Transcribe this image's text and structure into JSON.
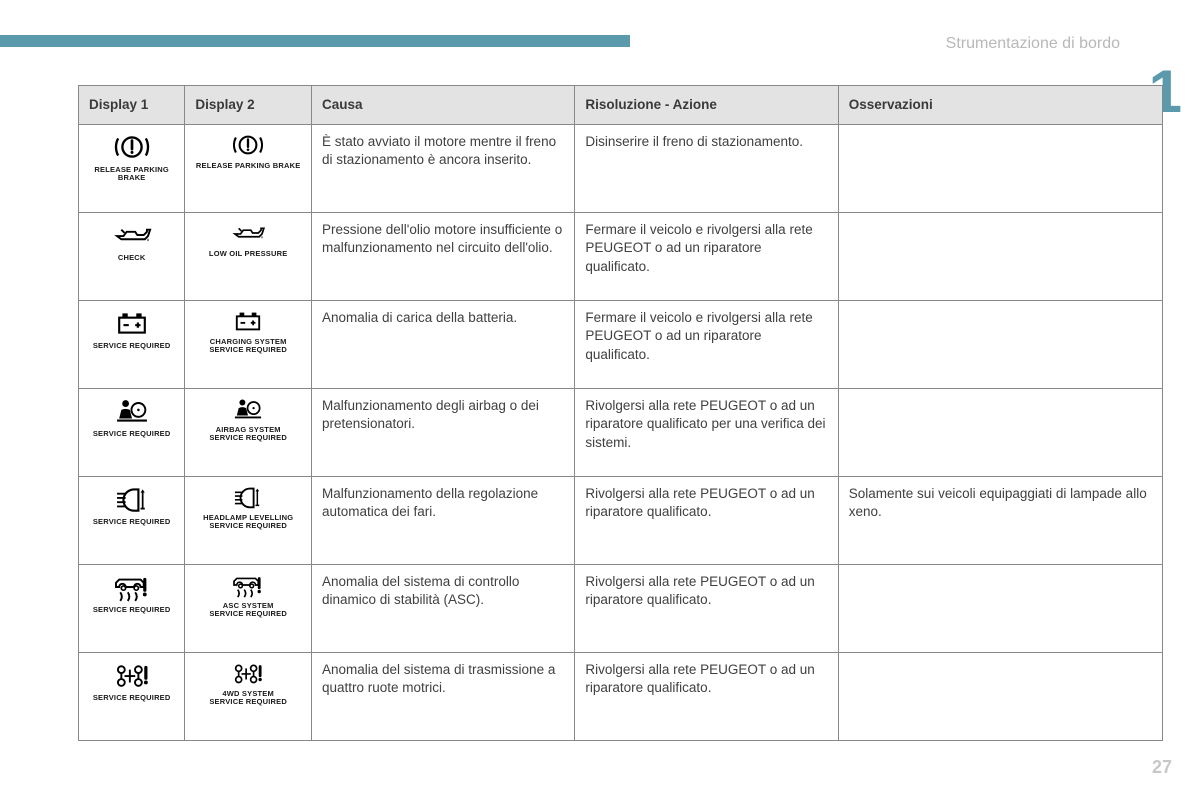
{
  "section_title": "Strumentazione di bordo",
  "chapter_number": "1",
  "page_number": "27",
  "colors": {
    "accent": "#5b9aad",
    "header_bg": "#e3e3e3",
    "border": "#888888",
    "text": "#404040",
    "muted": "#b8b8b8"
  },
  "table": {
    "columns": [
      "Display 1",
      "Display 2",
      "Causa",
      "Risoluzione - Azione",
      "Osservazioni"
    ],
    "rows": [
      {
        "d1_label": "RELEASE PARKING\nBRAKE",
        "d2_label": "RELEASE PARKING BRAKE",
        "icon": "brake",
        "causa": "È stato avviato il motore mentre il freno di stazionamento è ancora inserito.",
        "ris": "Disinserire il freno di stazionamento.",
        "oss": ""
      },
      {
        "d1_label": "CHECK",
        "d2_label": "LOW OIL PRESSURE",
        "icon": "oil",
        "causa": "Pressione dell'olio motore insufficiente o malfunzionamento nel circuito dell'olio.",
        "ris": "Fermare il veicolo e rivolgersi alla rete PEUGEOT o ad un riparatore qualificato.",
        "oss": ""
      },
      {
        "d1_label": "SERVICE REQUIRED",
        "d2_label": "CHARGING SYSTEM\nSERVICE REQUIRED",
        "icon": "battery",
        "causa": "Anomalia di carica della batteria.",
        "ris": "Fermare il veicolo e rivolgersi alla rete PEUGEOT o ad un riparatore qualificato.",
        "oss": ""
      },
      {
        "d1_label": "SERVICE REQUIRED",
        "d2_label": "AIRBAG SYSTEM\nSERVICE REQUIRED",
        "icon": "airbag",
        "causa": "Malfunzionamento degli airbag o dei pretensionatori.",
        "ris": "Rivolgersi alla rete PEUGEOT o ad un riparatore qualificato per una verifica dei sistemi.",
        "oss": ""
      },
      {
        "d1_label": "SERVICE REQUIRED",
        "d2_label": "HEADLAMP LEVELLING\nSERVICE REQUIRED",
        "icon": "headlamp",
        "causa": "Malfunzionamento della regolazione automatica dei fari.",
        "ris": "Rivolgersi alla rete PEUGEOT o ad un riparatore qualificato.",
        "oss": "Solamente sui veicoli equipaggiati di lampade allo xeno."
      },
      {
        "d1_label": "SERVICE REQUIRED",
        "d2_label": "ASC SYSTEM\nSERVICE REQUIRED",
        "icon": "asc",
        "causa": "Anomalia del sistema di controllo dinamico di stabilità (ASC).",
        "ris": "Rivolgersi alla rete PEUGEOT o ad un riparatore qualificato.",
        "oss": ""
      },
      {
        "d1_label": "SERVICE REQUIRED",
        "d2_label": "4WD SYSTEM\nSERVICE REQUIRED",
        "icon": "4wd",
        "causa": "Anomalia del sistema di trasmissione a quattro ruote motrici.",
        "ris": "Rivolgersi alla rete PEUGEOT o ad un riparatore qualificato.",
        "oss": ""
      }
    ]
  }
}
